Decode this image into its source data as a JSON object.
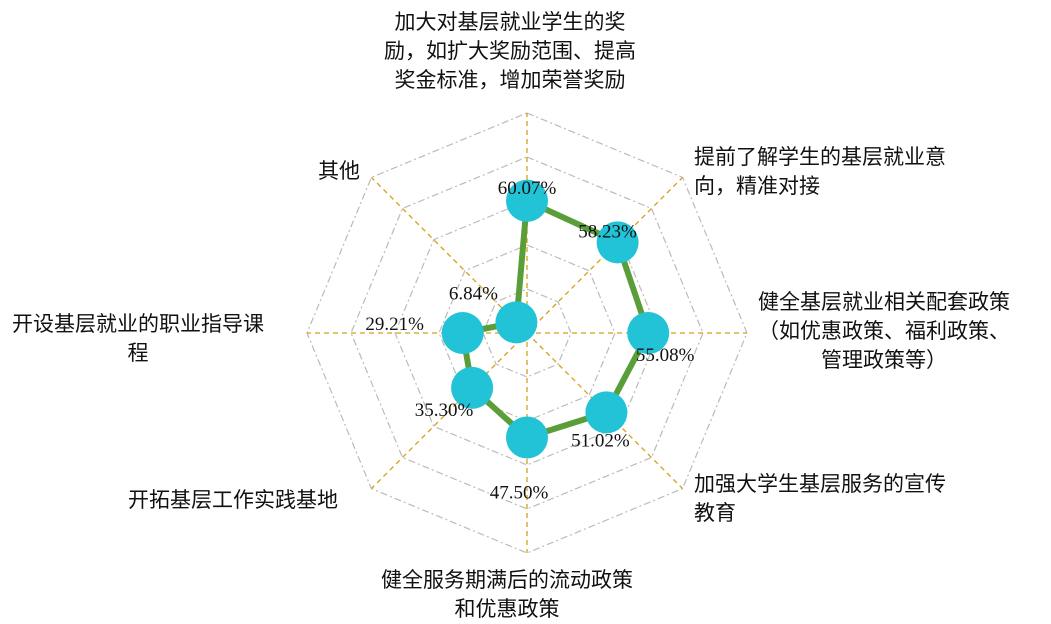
{
  "chart_data": {
    "type": "radar",
    "title": "",
    "rmax": 100,
    "grid": true,
    "grid_levels": 5,
    "colors": {
      "line": "#5a9e3a",
      "marker": "#22c3d6",
      "spoke": "#d4a017",
      "grid": "#bbbbbb"
    },
    "categories": [
      {
        "lines": [
          "加大对基层就业学生的奖",
          "励，如扩大奖励范围、提高",
          "奖金标准，增加荣誉奖励"
        ]
      },
      {
        "lines": [
          "提前了解学生的基层就业意",
          "向，精准对接"
        ]
      },
      {
        "lines": [
          "健全基层就业相关配套政策",
          "（如优惠政策、福利政策、",
          "管理政策等）"
        ]
      },
      {
        "lines": [
          "加强大学生基层服务的宣传",
          "教育"
        ]
      },
      {
        "lines": [
          "健全服务期满后的流动政策",
          "和优惠政策"
        ]
      },
      {
        "lines": [
          "开拓基层工作实践基地"
        ]
      },
      {
        "lines": [
          "开设基层就业的职业指导课",
          "程"
        ]
      },
      {
        "lines": [
          "其他"
        ]
      }
    ],
    "values": [
      60.07,
      58.23,
      55.08,
      51.02,
      47.5,
      35.3,
      29.21,
      6.84
    ],
    "value_labels": [
      "60.07%",
      "58.23%",
      "55.08%",
      "51.02%",
      "47.50%",
      "35.30%",
      "29.21%",
      "6.84%"
    ]
  }
}
